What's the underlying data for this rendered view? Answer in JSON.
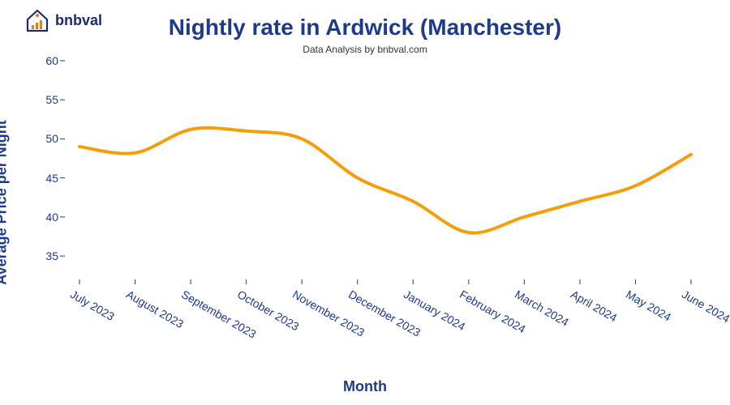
{
  "logo": {
    "text": "bnbval",
    "house_fill": "#ffffff",
    "house_stroke": "#1a2c6b",
    "bars_color": "#f97316",
    "circle_color": "#f97316"
  },
  "chart": {
    "type": "line",
    "title": "Nightly rate in Ardwick (Manchester)",
    "title_color": "#1e3a8a",
    "title_fontsize": 28,
    "subtitle": "Data Analysis by bnbval.com",
    "subtitle_color": "#333333",
    "subtitle_fontsize": 12,
    "ylabel": "Average Price per Night",
    "xlabel": "Month",
    "axis_label_color": "#1e3a8a",
    "axis_label_fontsize": 18,
    "tick_color": "#1e3a8a",
    "tick_fontsize": 14,
    "line_color": "#f59e0b",
    "line_width": 4,
    "background_color": "#ffffff",
    "ylim": [
      32,
      60
    ],
    "yticks": [
      35,
      40,
      45,
      50,
      55,
      60
    ],
    "x_categories": [
      "July 2023",
      "August 2023",
      "September 2023",
      "October 2023",
      "November 2023",
      "December 2023",
      "January 2024",
      "February 2024",
      "March 2024",
      "April 2024",
      "May 2024",
      "June 2024"
    ],
    "y_values": [
      49.0,
      48.2,
      51.2,
      51.0,
      50.0,
      45.0,
      42.0,
      38.0,
      40.0,
      42.0,
      44.0,
      48.0
    ],
    "xtick_rotation_deg": 30
  }
}
